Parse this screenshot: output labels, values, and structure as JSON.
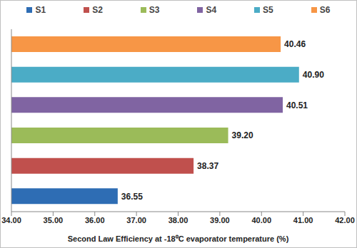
{
  "chart_data": {
    "type": "bar",
    "orientation": "horizontal",
    "categories": [
      "S1",
      "S2",
      "S3",
      "S4",
      "S5",
      "S6"
    ],
    "values": [
      36.55,
      38.37,
      39.2,
      40.51,
      40.9,
      40.46
    ],
    "value_labels": [
      "36.55",
      "38.37",
      "39.20",
      "40.51",
      "40.90",
      "40.46"
    ],
    "colors": [
      "#2e6db4",
      "#c0504d",
      "#9bbb59",
      "#8064a2",
      "#4bacc6",
      "#f79646"
    ],
    "x_label": "Second Law Efficiency at -18⁰C evaporator temperature    (%)",
    "xlim": [
      34,
      42
    ],
    "xticks": [
      {
        "value": 34,
        "label": "34.00"
      },
      {
        "value": 35,
        "label": "35.00"
      },
      {
        "value": 36,
        "label": "36.00"
      },
      {
        "value": 37,
        "label": "37.00"
      },
      {
        "value": 38,
        "label": "38.00"
      },
      {
        "value": 39,
        "label": "39.00"
      },
      {
        "value": 40,
        "label": "40.00"
      },
      {
        "value": 41,
        "label": "41.00"
      },
      {
        "value": 42,
        "label": "42.00"
      }
    ],
    "data_labels": true,
    "grid": false,
    "legend": "top",
    "tick_labels": "x"
  }
}
